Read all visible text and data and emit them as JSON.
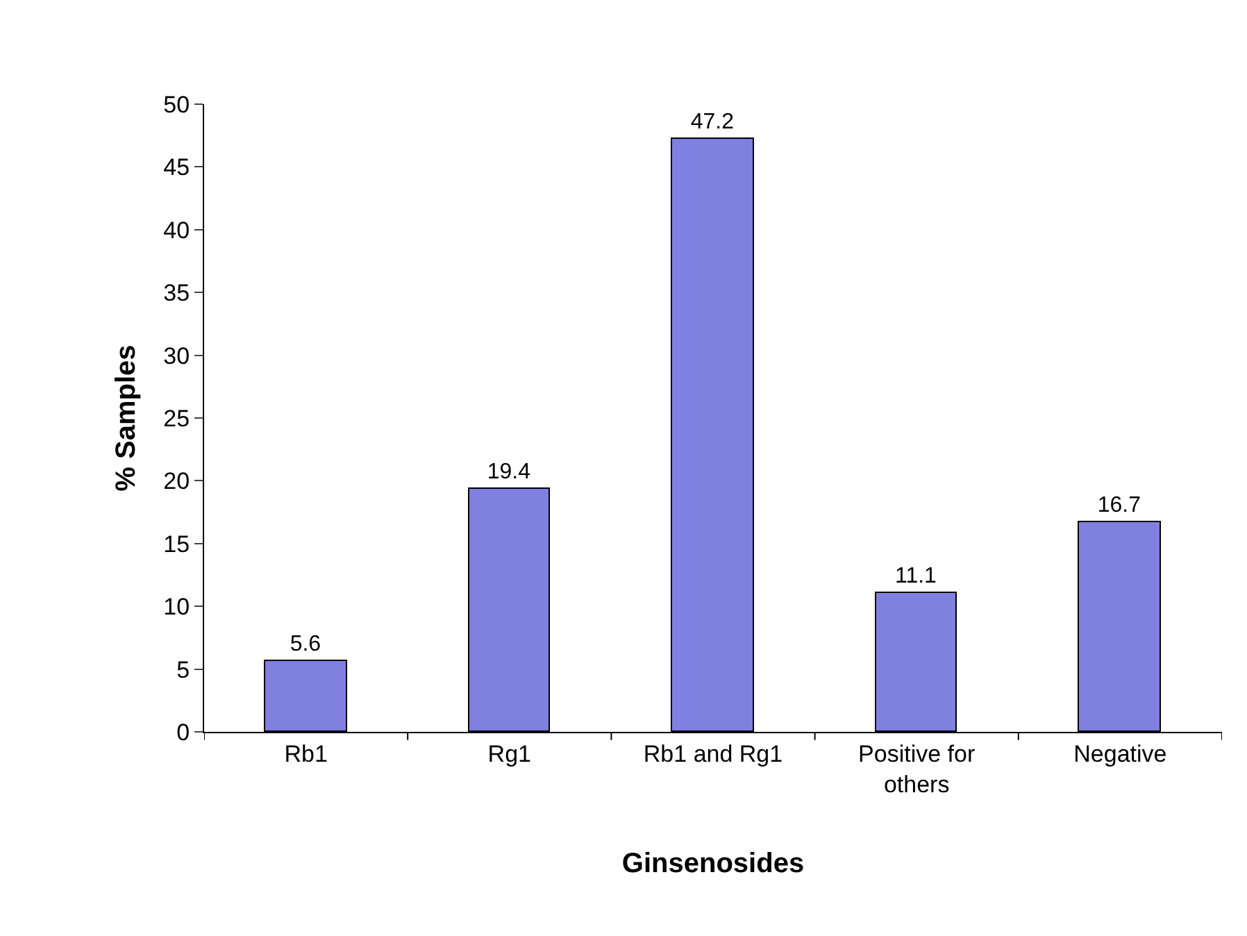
{
  "chart_data": {
    "type": "bar",
    "xlabel": "Ginsenosides",
    "ylabel": "% Samples",
    "categories": [
      "Rb1",
      "Rg1",
      "Rb1 and Rg1",
      "Positive for others",
      "Negative"
    ],
    "values": [
      5.6,
      19.4,
      47.2,
      11.1,
      16.7
    ],
    "color": "#8080e0",
    "ylim": [
      0,
      50
    ],
    "yticks": [
      0,
      5,
      10,
      15,
      20,
      25,
      30,
      35,
      40,
      45,
      50
    ],
    "grid": false,
    "data_labels": true
  }
}
